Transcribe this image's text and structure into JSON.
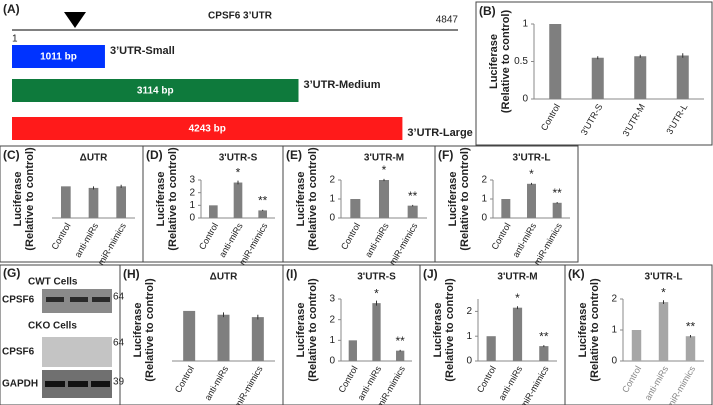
{
  "diagram": {
    "panel": "(A)",
    "title": "CPSF6 3’UTR",
    "start": 1,
    "end": 4847,
    "constructs": [
      {
        "label": "1011 bp",
        "name": "3’UTR-Small",
        "length": 1011,
        "color": "#0033ff"
      },
      {
        "label": "3114 bp",
        "name": "3’UTR-Medium",
        "length": 3114,
        "color": "#0e7a3c"
      },
      {
        "label": "4243 bp",
        "name": "3’UTR-Large",
        "length": 4243,
        "color": "#ff1a1a"
      }
    ]
  },
  "blot": {
    "panel": "(G)",
    "groups": [
      {
        "title": "CWT Cells",
        "rows": [
          {
            "label": "CPSF6",
            "marker": "64"
          }
        ]
      },
      {
        "title": "CKO Cells",
        "rows": [
          {
            "label": "CPSF6",
            "marker": "64"
          },
          {
            "label": "GAPDH",
            "marker": "39"
          }
        ]
      }
    ]
  },
  "chart_data": [
    {
      "type": "bar",
      "panel": "(B)",
      "ylabel": [
        "Luciferase",
        "(Relative to control)"
      ],
      "categories": [
        "Control",
        "3'UTR-S",
        "3'UTR-M",
        "3'UTR-L"
      ],
      "values": [
        1,
        0.55,
        0.57,
        0.58
      ],
      "errors": [
        0,
        0.02,
        0.02,
        0.03
      ],
      "color": "#7f7f7f",
      "ylim": [
        0,
        1
      ],
      "yticks": [
        0,
        0.5,
        1
      ]
    },
    {
      "type": "bar",
      "panel": "(C)",
      "title": "ΔUTR",
      "ylabel": [
        "Luciferase",
        "(Relative to control)"
      ],
      "categories": [
        "Control",
        "anti-miRs",
        "miR-mimics"
      ],
      "values": [
        1,
        0.95,
        1
      ],
      "errors": [
        0,
        0.05,
        0.05
      ],
      "color": "#7f7f7f",
      "ylim": [
        0,
        1.2
      ]
    },
    {
      "type": "bar",
      "panel": "(D)",
      "title": "3'UTR-S",
      "ylabel": [
        "Luciferase",
        "(Relative to control)"
      ],
      "categories": [
        "Control",
        "anti-miRs",
        "miR-mimics"
      ],
      "values": [
        1,
        2.8,
        0.6
      ],
      "errors": [
        0,
        0.15,
        0.05
      ],
      "annotations": [
        null,
        "*",
        "**"
      ],
      "color": "#7f7f7f",
      "ylim": [
        0,
        3
      ],
      "yticks": [
        0,
        1,
        2,
        3
      ]
    },
    {
      "type": "bar",
      "panel": "(E)",
      "title": "3'UTR-M",
      "ylabel": [
        "Luciferase",
        "(Relative to control)"
      ],
      "categories": [
        "Control",
        "anti-miRs",
        "miR-mimics"
      ],
      "values": [
        1,
        2,
        0.65
      ],
      "errors": [
        0,
        0.06,
        0.04
      ],
      "annotations": [
        null,
        "*",
        "**"
      ],
      "color": "#7f7f7f",
      "ylim": [
        0,
        2
      ],
      "yticks": [
        0,
        1,
        2
      ]
    },
    {
      "type": "bar",
      "panel": "(F)",
      "title": "3'UTR-L",
      "ylabel": [
        "Luciferase",
        "(Relative to control)"
      ],
      "categories": [
        "Control",
        "anti-miRs",
        "miR-mimics"
      ],
      "values": [
        1,
        1.8,
        0.8
      ],
      "errors": [
        0,
        0.05,
        0.04
      ],
      "annotations": [
        null,
        "*",
        "**"
      ],
      "color": "#7f7f7f",
      "ylim": [
        0,
        2
      ],
      "yticks": [
        0,
        1,
        2
      ]
    },
    {
      "type": "bar",
      "panel": "(H)",
      "title": "ΔUTR",
      "ylabel": [
        "Luciferase",
        "(Relative to control)"
      ],
      "categories": [
        "Control",
        "anti-miRs",
        "miR-mimics"
      ],
      "values": [
        1.05,
        0.97,
        0.92
      ],
      "errors": [
        0,
        0.05,
        0.05
      ],
      "color": "#7f7f7f",
      "ylim": [
        0,
        1.3
      ]
    },
    {
      "type": "bar",
      "panel": "(I)",
      "title": "3'UTR-S",
      "ylabel": [
        "Luciferase",
        "(Relative to control)"
      ],
      "categories": [
        "Control",
        "anti-miRs",
        "miR-mimics"
      ],
      "values": [
        1,
        2.8,
        0.5
      ],
      "errors": [
        0,
        0.12,
        0.04
      ],
      "annotations": [
        null,
        "*",
        "**"
      ],
      "color": "#7f7f7f",
      "ylim": [
        0,
        3
      ],
      "yticks": [
        0,
        1,
        2,
        3
      ]
    },
    {
      "type": "bar",
      "panel": "(J)",
      "title": "3'UTR-M",
      "ylabel": [
        "Luciferase",
        "(Relative to control)"
      ],
      "categories": [
        "Control",
        "anti-miRs",
        "miR-mimics"
      ],
      "values": [
        1,
        2.15,
        0.6
      ],
      "errors": [
        0,
        0.06,
        0.04
      ],
      "annotations": [
        null,
        "*",
        "**"
      ],
      "color": "#7f7f7f",
      "ylim": [
        0,
        2.5
      ],
      "yticks": [
        0,
        1,
        2
      ]
    },
    {
      "type": "bar",
      "panel": "(K)",
      "title": "3'UTR-L",
      "ylabel": [
        "Luciferase",
        "(Relative to control)"
      ],
      "categories": [
        "Control",
        "anti-miRs",
        "miR-mimics"
      ],
      "values": [
        1,
        1.9,
        0.8
      ],
      "errors": [
        0,
        0.06,
        0.04
      ],
      "annotations": [
        null,
        "*",
        "**"
      ],
      "color": "#a6a6a6",
      "ylim": [
        0,
        2
      ],
      "yticks": [
        0,
        1,
        2
      ]
    }
  ]
}
